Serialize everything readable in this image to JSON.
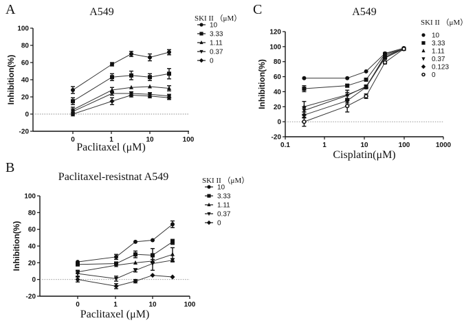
{
  "chart_data": [
    {
      "type": "line",
      "panel": "A",
      "title": "A549",
      "xlabel": "Paclitaxel (μM)",
      "ylabel": "Inhibition(%)",
      "xscale": "log",
      "x_tick_labels": [
        "0",
        "1",
        "10",
        "100"
      ],
      "y_ticks": [
        -20,
        0,
        20,
        40,
        60,
        80,
        100
      ],
      "ylim": [
        -20,
        100
      ],
      "reference_line_y": 0,
      "legend_title": "SKI II （μM）",
      "legend_position": "top-right",
      "x": [
        "0",
        1.23,
        3.7,
        11.1,
        33.3
      ],
      "series": [
        {
          "name": "10",
          "marker": "circle",
          "values": [
            28,
            58,
            70,
            66,
            72
          ],
          "errors": [
            4,
            2,
            3,
            4,
            3
          ]
        },
        {
          "name": "3.33",
          "marker": "square",
          "values": [
            15,
            43,
            45,
            43,
            47
          ],
          "errors": [
            4,
            4,
            5,
            4,
            6
          ]
        },
        {
          "name": "1.11",
          "marker": "triangle-up",
          "values": [
            5,
            28,
            31,
            32,
            30
          ],
          "errors": [
            3,
            3,
            1,
            1,
            3
          ]
        },
        {
          "name": "0.37",
          "marker": "triangle-down",
          "values": [
            3,
            24,
            24,
            23,
            21
          ],
          "errors": [
            3,
            2,
            2,
            2,
            2
          ]
        },
        {
          "name": "0",
          "marker": "diamond",
          "values": [
            0,
            15,
            22,
            21,
            19
          ],
          "errors": [
            2,
            4,
            2,
            2,
            2
          ]
        }
      ]
    },
    {
      "type": "line",
      "panel": "B",
      "title": "Paclitaxel-resistnat A549",
      "xlabel": "Paclitaxel (μM)",
      "ylabel": "Inhibition(%)",
      "xscale": "log",
      "x_tick_labels": [
        "0",
        "1",
        "10",
        "100"
      ],
      "y_ticks": [
        -20,
        0,
        20,
        40,
        60,
        80,
        100
      ],
      "ylim": [
        -20,
        100
      ],
      "reference_line_y": 0,
      "legend_title": "SKI II （μM）",
      "legend_position": "top-right",
      "x": [
        "0",
        1.23,
        3.7,
        11.1,
        33.3
      ],
      "series": [
        {
          "name": "10",
          "marker": "circle",
          "values": [
            21,
            27,
            45,
            47,
            66
          ],
          "errors": [
            1,
            3,
            1,
            1,
            4
          ]
        },
        {
          "name": "3.33",
          "marker": "square",
          "values": [
            18,
            19,
            30,
            29,
            45
          ],
          "errors": [
            1,
            2,
            4,
            8,
            3
          ]
        },
        {
          "name": "1.11",
          "marker": "triangle-up",
          "values": [
            9,
            17,
            20,
            22,
            30
          ],
          "errors": [
            2,
            1,
            1,
            2,
            8
          ]
        },
        {
          "name": "0.37",
          "marker": "triangle-down",
          "values": [
            7,
            1,
            11,
            19,
            23
          ],
          "errors": [
            3,
            3,
            2,
            8,
            2
          ]
        },
        {
          "name": "0",
          "marker": "diamond",
          "values": [
            0,
            -8,
            -2,
            5,
            3
          ],
          "errors": [
            3,
            3,
            2,
            1,
            1
          ]
        }
      ]
    },
    {
      "type": "line",
      "panel": "C",
      "title": "A549",
      "xlabel": "Cisplatin(μM)",
      "ylabel": "Inhibition(%)",
      "xscale": "log",
      "x_tick_labels": [
        "0.1",
        "1",
        "10",
        "100",
        "1000"
      ],
      "xlim": [
        0.1,
        1000
      ],
      "y_ticks": [
        -20,
        0,
        20,
        40,
        60,
        80,
        100,
        120
      ],
      "ylim": [
        -20,
        120
      ],
      "reference_line_y": 0,
      "legend_title": "SKI II （μM）",
      "legend_position": "top-right",
      "x": [
        0.3,
        3.7,
        11.1,
        33.3,
        100
      ],
      "series": [
        {
          "name": "10",
          "marker": "circle",
          "values": [
            58,
            58,
            67,
            91,
            98
          ],
          "errors": [
            1,
            1,
            1,
            1,
            1
          ]
        },
        {
          "name": "3.33",
          "marker": "square",
          "values": [
            44,
            48,
            56,
            90,
            97
          ],
          "errors": [
            4,
            2,
            1,
            1,
            1
          ]
        },
        {
          "name": "1.11",
          "marker": "triangle-up",
          "values": [
            20,
            36,
            46,
            88,
            97
          ],
          "errors": [
            7,
            6,
            2,
            2,
            1
          ]
        },
        {
          "name": "0.37",
          "marker": "triangle-down",
          "values": [
            15,
            35,
            47,
            86,
            97
          ],
          "errors": [
            5,
            4,
            2,
            2,
            1
          ]
        },
        {
          "name": "0.123",
          "marker": "diamond",
          "values": [
            9,
            28,
            46,
            85,
            97
          ],
          "errors": [
            4,
            3,
            2,
            2,
            1
          ]
        },
        {
          "name": "0",
          "marker": "open-circle",
          "values": [
            0,
            21,
            34,
            79,
            97
          ],
          "errors": [
            6,
            8,
            3,
            2,
            1
          ]
        }
      ]
    }
  ]
}
